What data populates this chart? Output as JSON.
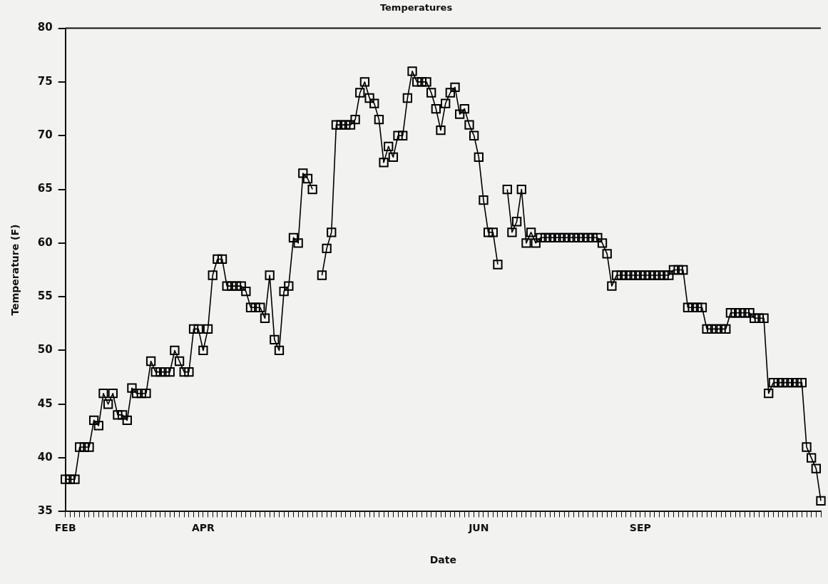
{
  "chart_data": {
    "type": "line",
    "title": "Temperatures",
    "xlabel": "Date",
    "ylabel": "Temperature (F)",
    "categories": [
      "FEB",
      null,
      null,
      null,
      null,
      null,
      null,
      null,
      null,
      null,
      null,
      null,
      null,
      null,
      null,
      null,
      null,
      null,
      null,
      null,
      null,
      null,
      null,
      null,
      null,
      null,
      null,
      null,
      null,
      "APR",
      null,
      null,
      null,
      null,
      null,
      null,
      null,
      null,
      null,
      null,
      null,
      null,
      null,
      null,
      null,
      null,
      null,
      null,
      null,
      null,
      null,
      null,
      null,
      null,
      null,
      null,
      null,
      null,
      null,
      null,
      null,
      null,
      null,
      null,
      null,
      null,
      null,
      null,
      null,
      null,
      null,
      null,
      null,
      null,
      null,
      null,
      null,
      null,
      null,
      null,
      null,
      null,
      null,
      null,
      null,
      null,
      null,
      "JUN",
      null,
      null,
      null,
      null,
      null,
      null,
      null,
      null,
      null,
      null,
      null,
      null,
      null,
      null,
      null,
      null,
      null,
      null,
      null,
      null,
      null,
      null,
      null,
      null,
      null,
      null,
      null,
      null,
      null,
      null,
      null,
      null,
      null,
      "SEP",
      null,
      null,
      null,
      null,
      null,
      null,
      null,
      null,
      null,
      null,
      null,
      null,
      null,
      null,
      null,
      null,
      null,
      null,
      null,
      null,
      null,
      null,
      null,
      null,
      null,
      null,
      null,
      null,
      null,
      null,
      null,
      null,
      null,
      null,
      null,
      null,
      null,
      null
    ],
    "series": [
      {
        "color": "#000000",
        "values": [
          38,
          38,
          38,
          41,
          41,
          41,
          43.5,
          43,
          46,
          45,
          46,
          44,
          44,
          43.5,
          46.5,
          46,
          46,
          46,
          49,
          48,
          48,
          48,
          48,
          50,
          49,
          48,
          48,
          52,
          52,
          50,
          52,
          57,
          58.5,
          58.5,
          56,
          56,
          56,
          56,
          55.5,
          54,
          54,
          54,
          53,
          57,
          51,
          50,
          55.5,
          56,
          60.5,
          60,
          66.5,
          66,
          65,
          null,
          57,
          59.5,
          61,
          71,
          71,
          71,
          71,
          71.5,
          74,
          75,
          73.5,
          73,
          71.5,
          67.5,
          69,
          68,
          70,
          70,
          73.5,
          76,
          75,
          75,
          75,
          74,
          72.5,
          70.5,
          73,
          74,
          74.5,
          72,
          72.5,
          71,
          70,
          68,
          64,
          61,
          61,
          58,
          null,
          65,
          61,
          62,
          65,
          60,
          61,
          60,
          60.5,
          60.5,
          60.5,
          60.5,
          60.5,
          60.5,
          60.5,
          60.5,
          60.5,
          60.5,
          60.5,
          60.5,
          60.5,
          60,
          59,
          56,
          57,
          57,
          57,
          57,
          57,
          57,
          57,
          57,
          57,
          57,
          57,
          57,
          57.5,
          57.5,
          57.5,
          54,
          54,
          54,
          54,
          52,
          52,
          52,
          52,
          52,
          53.5,
          53.5,
          53.5,
          53.5,
          53.5,
          53,
          53,
          53,
          46,
          47,
          47,
          47,
          47,
          47,
          47,
          47,
          41,
          40,
          39,
          36
        ]
      }
    ],
    "ylim": [
      35,
      80
    ],
    "yticks": [
      35,
      40,
      45,
      50,
      55,
      60,
      65,
      70,
      75,
      80
    ],
    "grid": false,
    "legend": false,
    "marker": "square",
    "line_style": "solid"
  }
}
